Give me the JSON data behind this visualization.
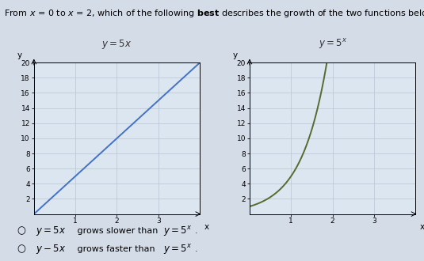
{
  "title_part1": "From ",
  "title_italic": "x",
  "title_part2": " = 0 to ",
  "title_italic2": "x",
  "title_part3": " = 2, which of the following ",
  "title_bold": "best",
  "title_part4": " describes the growth of the two functions below?",
  "title_fontsize": 8.0,
  "left_label": "y = 5x",
  "right_label": "y = 5x",
  "left_line_color": "#4472C4",
  "right_line_color": "#556B2F",
  "ylim": [
    0,
    20
  ],
  "xlim_left": [
    0,
    4.0
  ],
  "xlim_right": [
    0,
    4.0
  ],
  "yticks": [
    2,
    4,
    6,
    8,
    10,
    12,
    14,
    16,
    18,
    20
  ],
  "xticks": [
    1,
    2,
    3
  ],
  "xlabel": "x",
  "ylabel": "y",
  "bg_color": "#d4dce8",
  "plot_bg_color": "#dce6f0",
  "grid_color": "#b8c4d4",
  "grid_linewidth": 0.5,
  "line_linewidth": 1.4,
  "tick_fontsize": 6.5,
  "label_fontsize": 7.5
}
